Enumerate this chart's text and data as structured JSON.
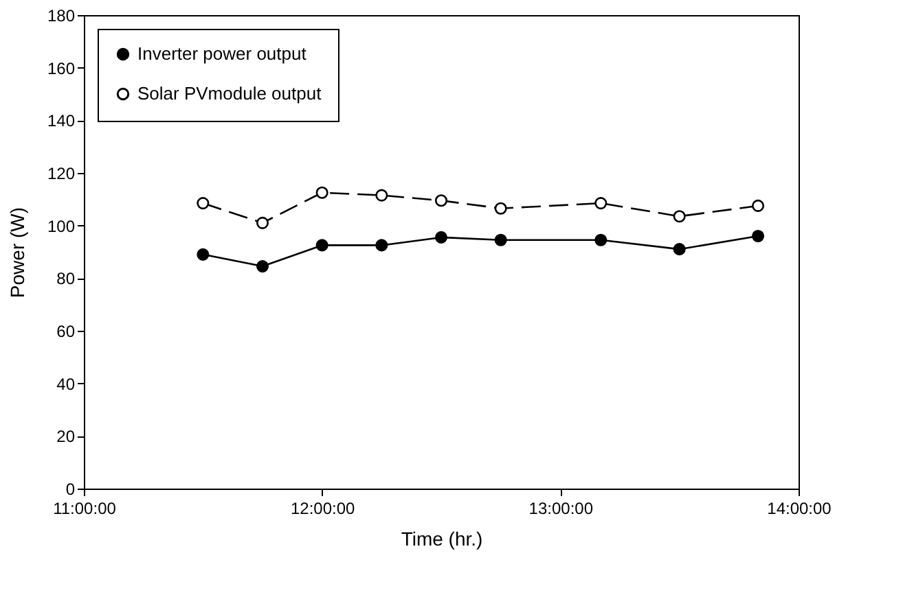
{
  "chart_data": {
    "type": "line",
    "xlabel": "Time (hr.)",
    "ylabel": "Power (W)",
    "xlim": [
      11,
      14
    ],
    "xticks": [
      {
        "value": 11,
        "label": "11:00:00"
      },
      {
        "value": 12,
        "label": "12:00:00"
      },
      {
        "value": 13,
        "label": "13:00:00"
      },
      {
        "value": 14,
        "label": "14:00:00"
      }
    ],
    "ylim": [
      0,
      180
    ],
    "yticks": [
      0,
      20,
      40,
      60,
      80,
      100,
      120,
      140,
      160,
      180
    ],
    "x": [
      11.5,
      11.75,
      12,
      12.25,
      12.5,
      12.75,
      13.17,
      13.5,
      13.83
    ],
    "series": [
      {
        "name": "Inverter power output",
        "color": "#000000",
        "line_style": "solid",
        "values": [
          89,
          84.5,
          92.5,
          92.5,
          95.5,
          94.5,
          94.5,
          91,
          96
        ]
      },
      {
        "name": "Solar PVmodule output",
        "color": "#000000",
        "line_style": "dashed",
        "values": [
          108.5,
          101,
          112.5,
          111.5,
          109.5,
          106.5,
          108.5,
          103.5,
          107.5
        ]
      }
    ],
    "marker": "circle",
    "grid": false,
    "legend": "top left"
  }
}
